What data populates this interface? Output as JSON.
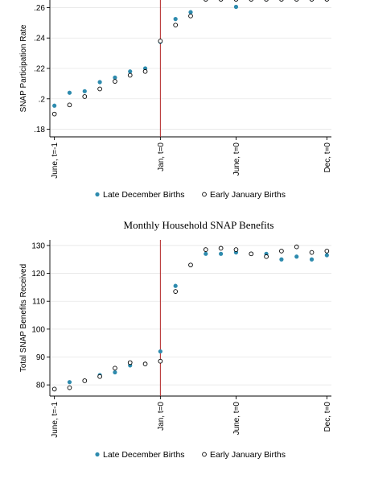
{
  "chart_data": [
    {
      "type": "scatter",
      "title": "",
      "ylabel": "SNAP Participation Rate",
      "xlabel": "",
      "ylim": [
        0.175,
        0.265
      ],
      "y_ticks": [
        0.18,
        0.2,
        0.22,
        0.24,
        0.26
      ],
      "y_tick_labels": [
        ".18",
        ".2",
        ".22",
        ".24",
        ".26"
      ],
      "x_ticks": [
        0,
        7,
        12,
        18
      ],
      "x_tick_labels": [
        "June, t=-1",
        "Jan, t=0",
        "June, t=0",
        "Dec, t=0"
      ],
      "xlim": [
        -0.3,
        18.3
      ],
      "grid": true,
      "cutoff_line_at": 7,
      "cutoff_color": "#b22222",
      "legend_placement": "bottom",
      "series": [
        {
          "name": "Late December Births",
          "marker": "filled-circle",
          "color": "#2e8bae",
          "x": [
            0,
            1,
            2,
            3,
            4,
            5,
            6,
            7,
            8,
            9,
            10,
            11,
            12,
            13,
            14,
            15,
            16,
            17,
            18
          ],
          "y": [
            0.1955,
            0.204,
            0.205,
            0.211,
            0.214,
            0.218,
            0.22,
            0.2375,
            0.2525,
            0.257,
            0.2655,
            0.2655,
            0.2605,
            0.2655,
            0.2655,
            0.2655,
            0.2655,
            0.2655,
            0.2655
          ]
        },
        {
          "name": "Early January Births",
          "marker": "hollow-circle",
          "color": "#000000",
          "x": [
            0,
            1,
            2,
            3,
            4,
            5,
            6,
            7,
            8,
            9,
            10,
            11,
            12,
            13,
            14,
            15,
            16,
            17,
            18
          ],
          "y": [
            0.19,
            0.196,
            0.2015,
            0.2065,
            0.2115,
            0.2155,
            0.218,
            0.238,
            0.2485,
            0.2545,
            0.2655,
            0.2655,
            0.2655,
            0.2655,
            0.2655,
            0.2655,
            0.2655,
            0.2655,
            0.2655
          ]
        }
      ]
    },
    {
      "type": "scatter",
      "title": "Monthly Household SNAP Benefits",
      "ylabel": "Total SNAP Benefits Received",
      "xlabel": "",
      "ylim": [
        76,
        132
      ],
      "y_ticks": [
        80,
        90,
        100,
        110,
        120,
        130
      ],
      "y_tick_labels": [
        "80",
        "90",
        "100",
        "110",
        "120",
        "130"
      ],
      "x_ticks": [
        0,
        7,
        12,
        18
      ],
      "x_tick_labels": [
        "June, t=-1",
        "Jan, t=0",
        "June, t=0",
        "Dec, t=0"
      ],
      "xlim": [
        -0.3,
        18.3
      ],
      "grid": true,
      "cutoff_line_at": 7,
      "cutoff_color": "#b22222",
      "legend_placement": "bottom",
      "series": [
        {
          "name": "Late December Births",
          "marker": "filled-circle",
          "color": "#2e8bae",
          "x": [
            0,
            1,
            2,
            3,
            4,
            5,
            6,
            7,
            8,
            9,
            10,
            11,
            12,
            13,
            14,
            15,
            16,
            17,
            18
          ],
          "y": [
            78.5,
            81,
            81.5,
            83.5,
            84.5,
            87,
            87.5,
            92,
            115.5,
            123,
            127,
            127,
            127.5,
            127,
            127,
            125,
            126,
            125,
            126.5
          ]
        },
        {
          "name": "Early January Births",
          "marker": "hollow-circle",
          "color": "#000000",
          "x": [
            0,
            1,
            2,
            3,
            4,
            5,
            6,
            7,
            8,
            9,
            10,
            11,
            12,
            13,
            14,
            15,
            16,
            17,
            18
          ],
          "y": [
            78.5,
            79,
            81.5,
            83,
            86,
            88,
            87.5,
            88.5,
            113.5,
            123,
            128.5,
            129,
            128.5,
            127,
            126,
            128,
            129.5,
            127.5,
            128
          ]
        }
      ]
    }
  ]
}
